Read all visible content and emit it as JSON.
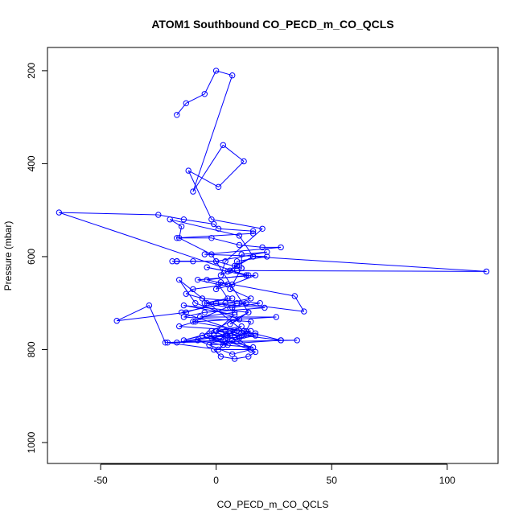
{
  "chart_data": {
    "type": "line",
    "title": "ATOM1 Southbound CO_PECD_m_CO_QCLS",
    "xlabel": "CO_PECD_m_CO_QCLS",
    "ylabel": "Pressure (mbar)",
    "xlim": [
      -73,
      122
    ],
    "ylim": [
      1045,
      150
    ],
    "y_reversed": true,
    "x_ticks": [
      -50,
      0,
      50,
      100
    ],
    "y_ticks": [
      200,
      400,
      600,
      800,
      1000
    ],
    "x_tick_labels": [
      "-50",
      "0",
      "50",
      "100"
    ],
    "y_tick_labels": [
      "200",
      "400",
      "600",
      "800",
      "1000"
    ],
    "grid": false,
    "legend": "none",
    "series_color": "#0000ff",
    "markers": "open-circle",
    "x": [
      -17,
      -13,
      -5,
      0,
      7,
      -10,
      3,
      12,
      1,
      -12,
      -2,
      20,
      4,
      2,
      16,
      10,
      -20,
      -15,
      -16,
      -2,
      14,
      -14,
      8,
      0,
      11,
      6,
      -3,
      28,
      12,
      -17,
      5,
      15,
      7,
      -8,
      3,
      16,
      -4,
      10,
      7,
      17,
      6,
      4,
      -3,
      -14,
      -6,
      5,
      -2,
      3,
      -22,
      -29,
      -43,
      -13,
      0,
      4,
      13,
      6,
      -5,
      5,
      1,
      -8,
      17,
      7,
      0,
      2,
      34,
      38,
      9,
      -10,
      12,
      15,
      13,
      -16,
      -9,
      10,
      6,
      14,
      -2,
      4,
      -1,
      17,
      7,
      3,
      1,
      -21,
      35,
      28,
      12,
      6,
      15,
      -1,
      2,
      8,
      14,
      17,
      4,
      11,
      0,
      9,
      -15,
      15,
      6,
      11,
      0,
      -17,
      -10,
      -19,
      -17,
      0,
      22,
      11,
      11,
      8,
      16,
      117,
      9,
      5,
      -4,
      13,
      -68,
      -25,
      -14,
      -1,
      1,
      16,
      16,
      -17,
      -2,
      10,
      20,
      28,
      -5,
      22,
      9,
      9,
      6,
      14,
      -4,
      5,
      -10,
      -13,
      -6,
      19,
      7,
      8,
      -7,
      26,
      -9,
      -16,
      13,
      15,
      -14,
      -5,
      21,
      -4,
      7
    ],
    "y": [
      295,
      270,
      250,
      200,
      210,
      460,
      360,
      395,
      450,
      415,
      520,
      540,
      610,
      640,
      600,
      555,
      520,
      535,
      560,
      595,
      720,
      705,
      725,
      760,
      750,
      765,
      790,
      780,
      760,
      785,
      770,
      800,
      810,
      780,
      790,
      795,
      770,
      775,
      780,
      765,
      770,
      760,
      765,
      780,
      770,
      790,
      775,
      780,
      785,
      705,
      738,
      720,
      700,
      700,
      700,
      710,
      700,
      690,
      660,
      650,
      640,
      660,
      670,
      655,
      685,
      718,
      700,
      740,
      760,
      760,
      765,
      650,
      700,
      735,
      745,
      720,
      760,
      770,
      770,
      770,
      780,
      790,
      800,
      785,
      780,
      780,
      770,
      760,
      800,
      800,
      815,
      820,
      815,
      805,
      780,
      770,
      760,
      760,
      720,
      690,
      670,
      625,
      610,
      610,
      610,
      610,
      610,
      610,
      590,
      595,
      625,
      620,
      600,
      632,
      630,
      632,
      623,
      640,
      505,
      510,
      520,
      530,
      540,
      545,
      550,
      560,
      560,
      575,
      580,
      580,
      595,
      600,
      610,
      620,
      630,
      640,
      650,
      660,
      670,
      680,
      690,
      700,
      710,
      720,
      730,
      730,
      740,
      750,
      760,
      740,
      730,
      720,
      710,
      700,
      690
    ]
  }
}
